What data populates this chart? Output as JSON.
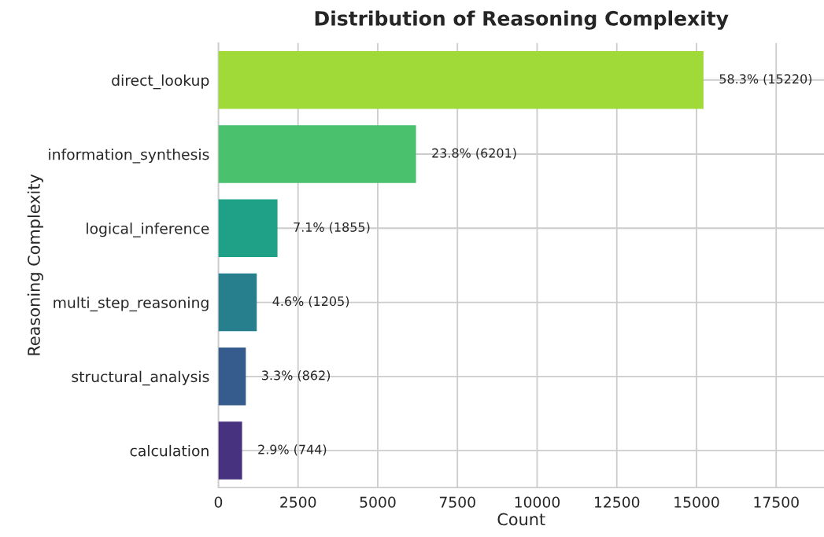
{
  "chart_data": {
    "type": "bar",
    "orientation": "horizontal",
    "title": "Distribution of Reasoning Complexity",
    "xlabel": "Count",
    "ylabel": "Reasoning Complexity",
    "categories": [
      "direct_lookup",
      "information_synthesis",
      "logical_inference",
      "multi_step_reasoning",
      "structural_analysis",
      "calculation"
    ],
    "values": [
      15220,
      6201,
      1855,
      1205,
      862,
      744
    ],
    "colors": [
      "#a0da39",
      "#4ac16d",
      "#1fa188",
      "#277f8e",
      "#365c8d",
      "#46327e"
    ],
    "value_labels": [
      "58.3% (15220)",
      "23.8% (6201)",
      "7.1% (1855)",
      "4.6% (1205)",
      "3.3% (862)",
      "2.9% (744)"
    ],
    "xlim": [
      0,
      19000
    ],
    "xticks": [
      0,
      2500,
      5000,
      7500,
      10000,
      12500,
      15000,
      17500
    ],
    "grid": true,
    "legend": false
  }
}
